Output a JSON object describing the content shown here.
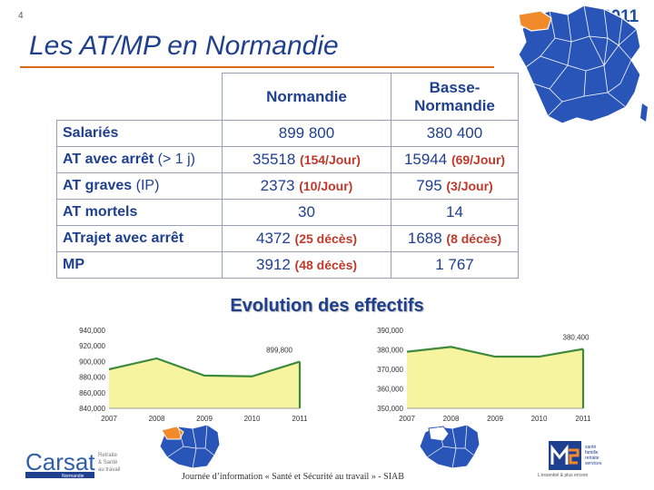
{
  "header": {
    "page_number": "4",
    "year": "2011",
    "title": "Les AT/MP en Normandie"
  },
  "table": {
    "columns": [
      "Normandie",
      "Basse-\nNormandie"
    ],
    "rows": [
      {
        "label": "Salariés",
        "label_sub": "",
        "normandie": "899 800",
        "normandie_note": "",
        "basse": "380 400",
        "basse_note": ""
      },
      {
        "label": "AT avec arrêt",
        "label_sub": " (> 1 j)",
        "normandie": "35518 ",
        "normandie_note": "(154/Jour)",
        "basse": "15944 ",
        "basse_note": "(69/Jour)"
      },
      {
        "label": "AT graves",
        "label_sub": " (IP)",
        "normandie": "2373 ",
        "normandie_note": "(10/Jour)",
        "basse": "795 ",
        "basse_note": "(3/Jour)"
      },
      {
        "label": "AT mortels",
        "label_sub": "",
        "normandie": "30",
        "normandie_note": "",
        "basse": "14",
        "basse_note": ""
      },
      {
        "label": "ATrajet avec arrêt",
        "label_sub": "",
        "normandie": "4372 ",
        "normandie_note": "(25 décès)",
        "basse": "1688 ",
        "basse_note": "(8 décès)"
      },
      {
        "label": "MP",
        "label_sub": "",
        "normandie": "3912 ",
        "normandie_note": "(48 décès)",
        "basse": "1 767",
        "basse_note": ""
      }
    ]
  },
  "evolution_title": "Evolution des effectifs",
  "chart_data": [
    {
      "type": "area",
      "categories": [
        "2007",
        "2008",
        "2009",
        "2010",
        "2011"
      ],
      "series": [
        {
          "values": [
            890000,
            904000,
            882000,
            881000,
            899800
          ]
        }
      ],
      "ylim": [
        840000,
        940000
      ],
      "yticks": [
        "840,000",
        "860,000",
        "880,000",
        "900,000",
        "920,000",
        "940,000"
      ],
      "annotation": "899,800",
      "fill_color": "#f7f4a0",
      "line_color": "#3d8a3d"
    },
    {
      "type": "area",
      "categories": [
        "2007",
        "2008",
        "2009",
        "2010",
        "2011"
      ],
      "series": [
        {
          "values": [
            379000,
            381500,
            376500,
            376500,
            380400
          ]
        }
      ],
      "ylim": [
        350000,
        390000
      ],
      "yticks": [
        "350,000",
        "360,000",
        "370,000",
        "380,000",
        "390,000"
      ],
      "annotation": "380,400",
      "fill_color": "#f7f4a0",
      "line_color": "#3d8a3d"
    }
  ],
  "footer": {
    "text": "Journée d’information « Santé et Sécurité au travail » -  SIAB",
    "carsat_brand": "Carsat",
    "carsat_sub": "Normandie",
    "carsat_tagline": [
      "Retraite",
      "& Santé",
      "au travail"
    ],
    "msa_lines": [
      "santé",
      "famille",
      "retraite",
      "services"
    ],
    "msa_slogan": "L’essentiel & plus encore"
  },
  "colors": {
    "title": "#1f3f8f",
    "accent": "#d9691f",
    "highlight_red": "#c0392b",
    "map_blue": "#2a55b8",
    "map_orange": "#f08a2a"
  }
}
